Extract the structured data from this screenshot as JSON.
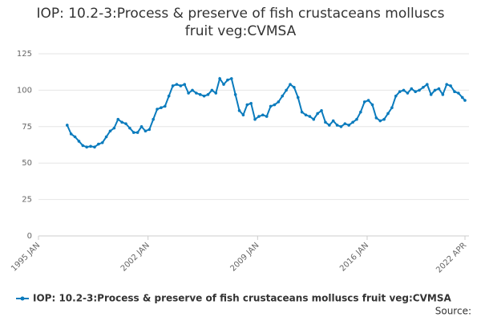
{
  "chart_data": {
    "type": "line",
    "title": "IOP: 10.2-3:Process & preserve of fish crustaceans molluscs fruit veg:CVMSA",
    "source": "Source:",
    "xlim": [
      "1995-01",
      "2022-04"
    ],
    "xticks": [
      {
        "value": "1995-01",
        "label": "1995 JAN"
      },
      {
        "value": "2002-01",
        "label": "2002 JAN"
      },
      {
        "value": "2009-01",
        "label": "2009 JAN"
      },
      {
        "value": "2016-01",
        "label": "2016 JAN"
      },
      {
        "value": "2022-04",
        "label": "2022 APR"
      }
    ],
    "ylim": [
      0,
      125
    ],
    "yticks": [
      0,
      25,
      50,
      75,
      100,
      125
    ],
    "grid": true,
    "x": [
      "1996-11",
      "1997-02",
      "1997-05",
      "1997-08",
      "1997-11",
      "1998-02",
      "1998-05",
      "1998-08",
      "1998-11",
      "1999-02",
      "1999-05",
      "1999-08",
      "1999-11",
      "2000-02",
      "2000-05",
      "2000-08",
      "2000-11",
      "2001-02",
      "2001-05",
      "2001-08",
      "2001-11",
      "2002-02",
      "2002-05",
      "2002-08",
      "2002-11",
      "2003-02",
      "2003-05",
      "2003-08",
      "2003-11",
      "2004-02",
      "2004-05",
      "2004-08",
      "2004-11",
      "2005-02",
      "2005-05",
      "2005-08",
      "2005-11",
      "2006-02",
      "2006-05",
      "2006-08",
      "2006-11",
      "2007-02",
      "2007-05",
      "2007-08",
      "2007-11",
      "2008-02",
      "2008-05",
      "2008-08",
      "2008-11",
      "2009-02",
      "2009-05",
      "2009-08",
      "2009-11",
      "2010-02",
      "2010-05",
      "2010-08",
      "2010-11",
      "2011-02",
      "2011-05",
      "2011-08",
      "2011-11",
      "2012-02",
      "2012-05",
      "2012-08",
      "2012-11",
      "2013-02",
      "2013-05",
      "2013-08",
      "2013-11",
      "2014-02",
      "2014-05",
      "2014-08",
      "2014-11",
      "2015-02",
      "2015-05",
      "2015-08",
      "2015-11",
      "2016-02",
      "2016-05",
      "2016-08",
      "2016-11",
      "2017-02",
      "2017-05",
      "2017-08",
      "2017-11",
      "2018-02",
      "2018-05",
      "2018-08",
      "2018-11",
      "2019-02",
      "2019-05",
      "2019-08",
      "2019-11",
      "2020-02",
      "2020-05",
      "2020-08",
      "2020-11",
      "2021-02",
      "2021-05",
      "2021-08",
      "2021-11",
      "2022-02",
      "2022-04"
    ],
    "series": [
      {
        "name": "IOP: 10.2-3:Process & preserve of fish crustaceans molluscs fruit veg:CVMSA",
        "color": "#0a7bbd",
        "values": [
          76,
          70,
          68,
          65,
          62,
          61,
          61.5,
          61,
          63,
          64,
          68,
          72,
          74,
          80,
          78,
          77,
          74,
          71,
          71,
          75,
          72,
          73,
          80,
          87,
          88,
          89,
          96,
          103,
          104,
          103,
          104,
          98,
          100,
          98,
          97,
          96,
          97,
          100,
          98,
          108,
          104,
          107,
          108,
          97,
          86,
          83,
          90,
          91,
          80,
          82,
          83,
          82,
          89,
          90,
          92,
          96,
          100,
          104,
          102,
          95,
          85,
          83,
          82,
          80,
          84,
          86,
          78,
          76,
          79,
          76,
          75,
          77,
          76,
          78,
          80,
          85,
          92,
          93,
          90,
          81,
          79,
          80,
          84,
          88,
          96,
          99,
          100,
          98,
          101,
          99,
          100,
          102,
          104,
          97,
          100,
          101,
          97,
          104,
          103,
          99,
          98,
          95,
          93
        ]
      }
    ]
  }
}
